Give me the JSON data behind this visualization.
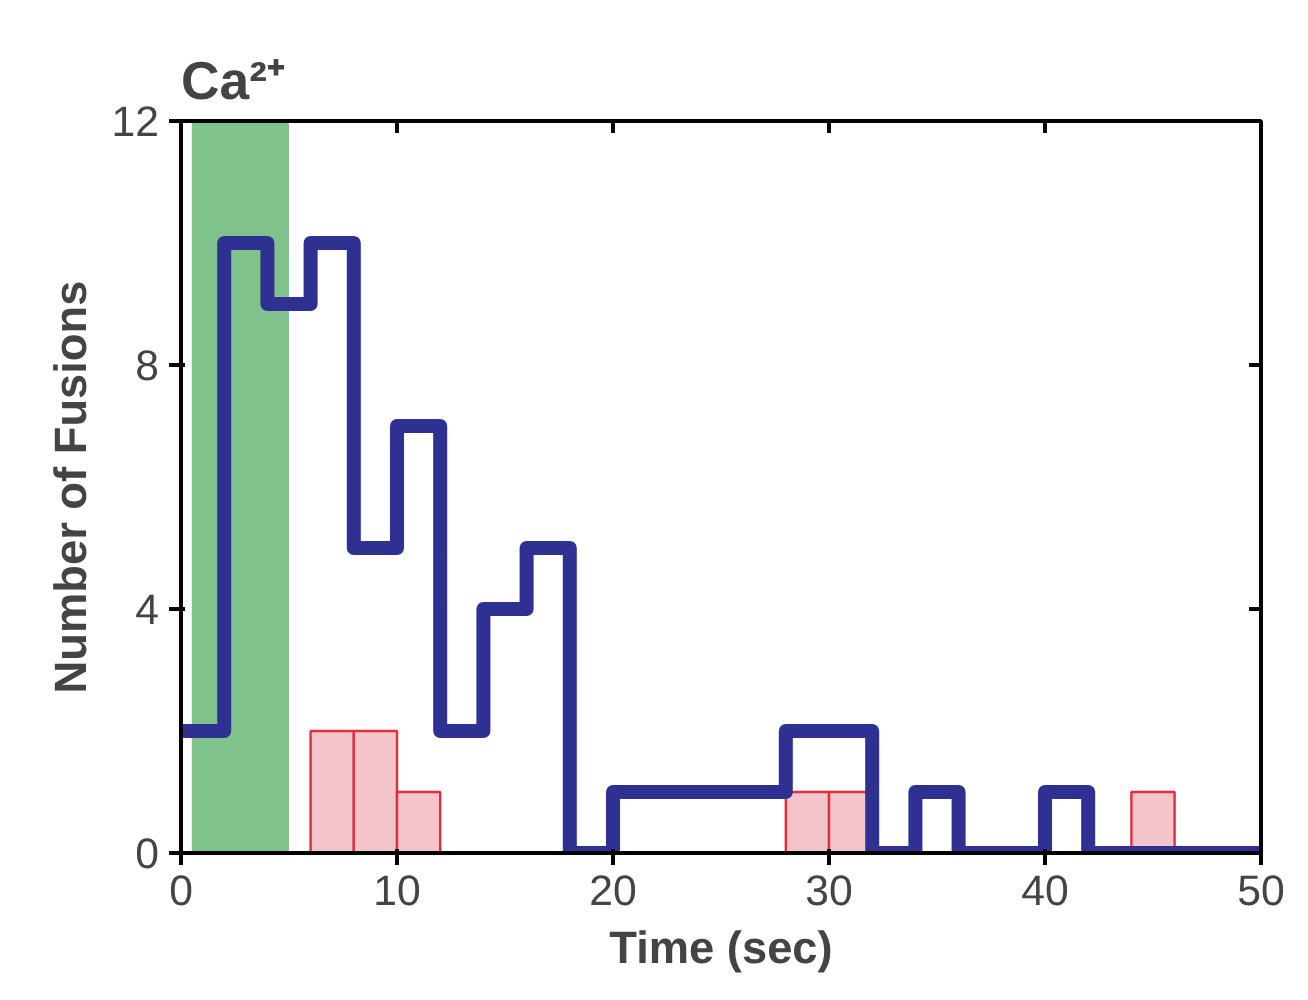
{
  "chart_data": {
    "type": "histogram",
    "title": "Ca²⁺",
    "xlabel": "Time (sec)",
    "ylabel": "Number of Fusions",
    "bins": [
      0,
      2,
      4,
      6,
      8,
      10,
      12,
      14,
      16,
      18,
      20,
      22,
      24,
      26,
      28,
      30,
      32,
      34,
      36,
      38,
      40,
      42,
      44,
      46,
      48,
      50
    ],
    "series": [
      {
        "color": "#f4c6cc",
        "values": [
          0,
          0,
          0,
          2,
          2,
          1,
          0,
          0,
          0,
          0,
          0,
          0,
          0,
          0,
          1,
          1,
          0,
          0,
          0,
          0,
          0,
          0,
          1,
          0,
          0
        ]
      },
      {
        "type": "step",
        "color": "#2e3192",
        "x": [
          0,
          2,
          4,
          6,
          8,
          10,
          12,
          14,
          16,
          18,
          20,
          22,
          24,
          26,
          28,
          30,
          32,
          34,
          36,
          38,
          40,
          42,
          44,
          46,
          48,
          50
        ],
        "values": [
          2,
          10,
          9,
          10,
          5,
          7,
          2,
          4,
          5,
          0,
          1,
          1,
          1,
          1,
          2,
          2,
          0,
          1,
          0,
          0,
          1,
          0,
          0,
          0,
          0,
          0
        ]
      }
    ],
    "bands": [
      {
        "axis": "x",
        "from": 0.5,
        "to": 5,
        "color": "#5fb36f"
      }
    ],
    "xlim": [
      0,
      50
    ],
    "xticks": [
      0,
      10,
      20,
      30,
      40,
      50
    ],
    "ylim": [
      0,
      12
    ],
    "yticks": [
      0,
      4,
      8,
      12
    ],
    "grid": false
  }
}
